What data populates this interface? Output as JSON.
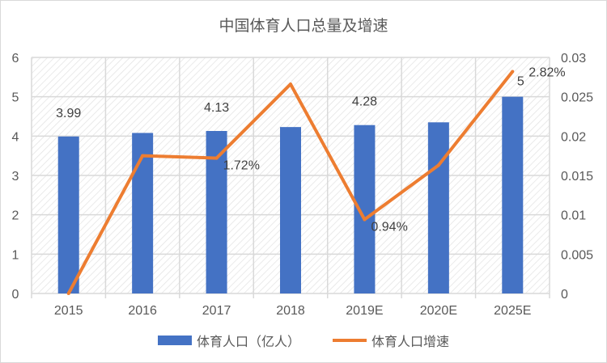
{
  "chart_data": {
    "type": "bar+line",
    "title": "中国体育人口总量及增速",
    "categories": [
      "2015",
      "2016",
      "2017",
      "2018",
      "2019E",
      "2020E",
      "2025E"
    ],
    "series": [
      {
        "name": "体育人口（亿人）",
        "type": "bar",
        "axis": "left",
        "color": "#4472c4",
        "values": [
          3.99,
          4.08,
          4.13,
          4.23,
          4.28,
          4.35,
          5
        ]
      },
      {
        "name": "体育人口增速",
        "type": "line",
        "axis": "right",
        "color": "#ed7d31",
        "values": [
          0,
          0.0175,
          0.0172,
          0.0266,
          0.0094,
          0.0163,
          0.0282
        ]
      }
    ],
    "data_labels": [
      {
        "series": 0,
        "index": 0,
        "text": "3.99"
      },
      {
        "series": 0,
        "index": 2,
        "text": "4.13"
      },
      {
        "series": 0,
        "index": 4,
        "text": "4.28"
      },
      {
        "series": 0,
        "index": 6,
        "text": "5"
      },
      {
        "series": 1,
        "index": 2,
        "text": "1.72%"
      },
      {
        "series": 1,
        "index": 4,
        "text": "0.94%"
      },
      {
        "series": 1,
        "index": 6,
        "text": "2.82%"
      }
    ],
    "y_left": {
      "min": 0,
      "max": 6,
      "ticks": [
        "0",
        "1",
        "2",
        "3",
        "4",
        "5",
        "6"
      ]
    },
    "y_right": {
      "min": 0,
      "max": 0.03,
      "ticks": [
        "0",
        "0.005",
        "0.01",
        "0.015",
        "0.02",
        "0.025",
        "0.03"
      ]
    },
    "grid": true,
    "legend": "bottom"
  }
}
